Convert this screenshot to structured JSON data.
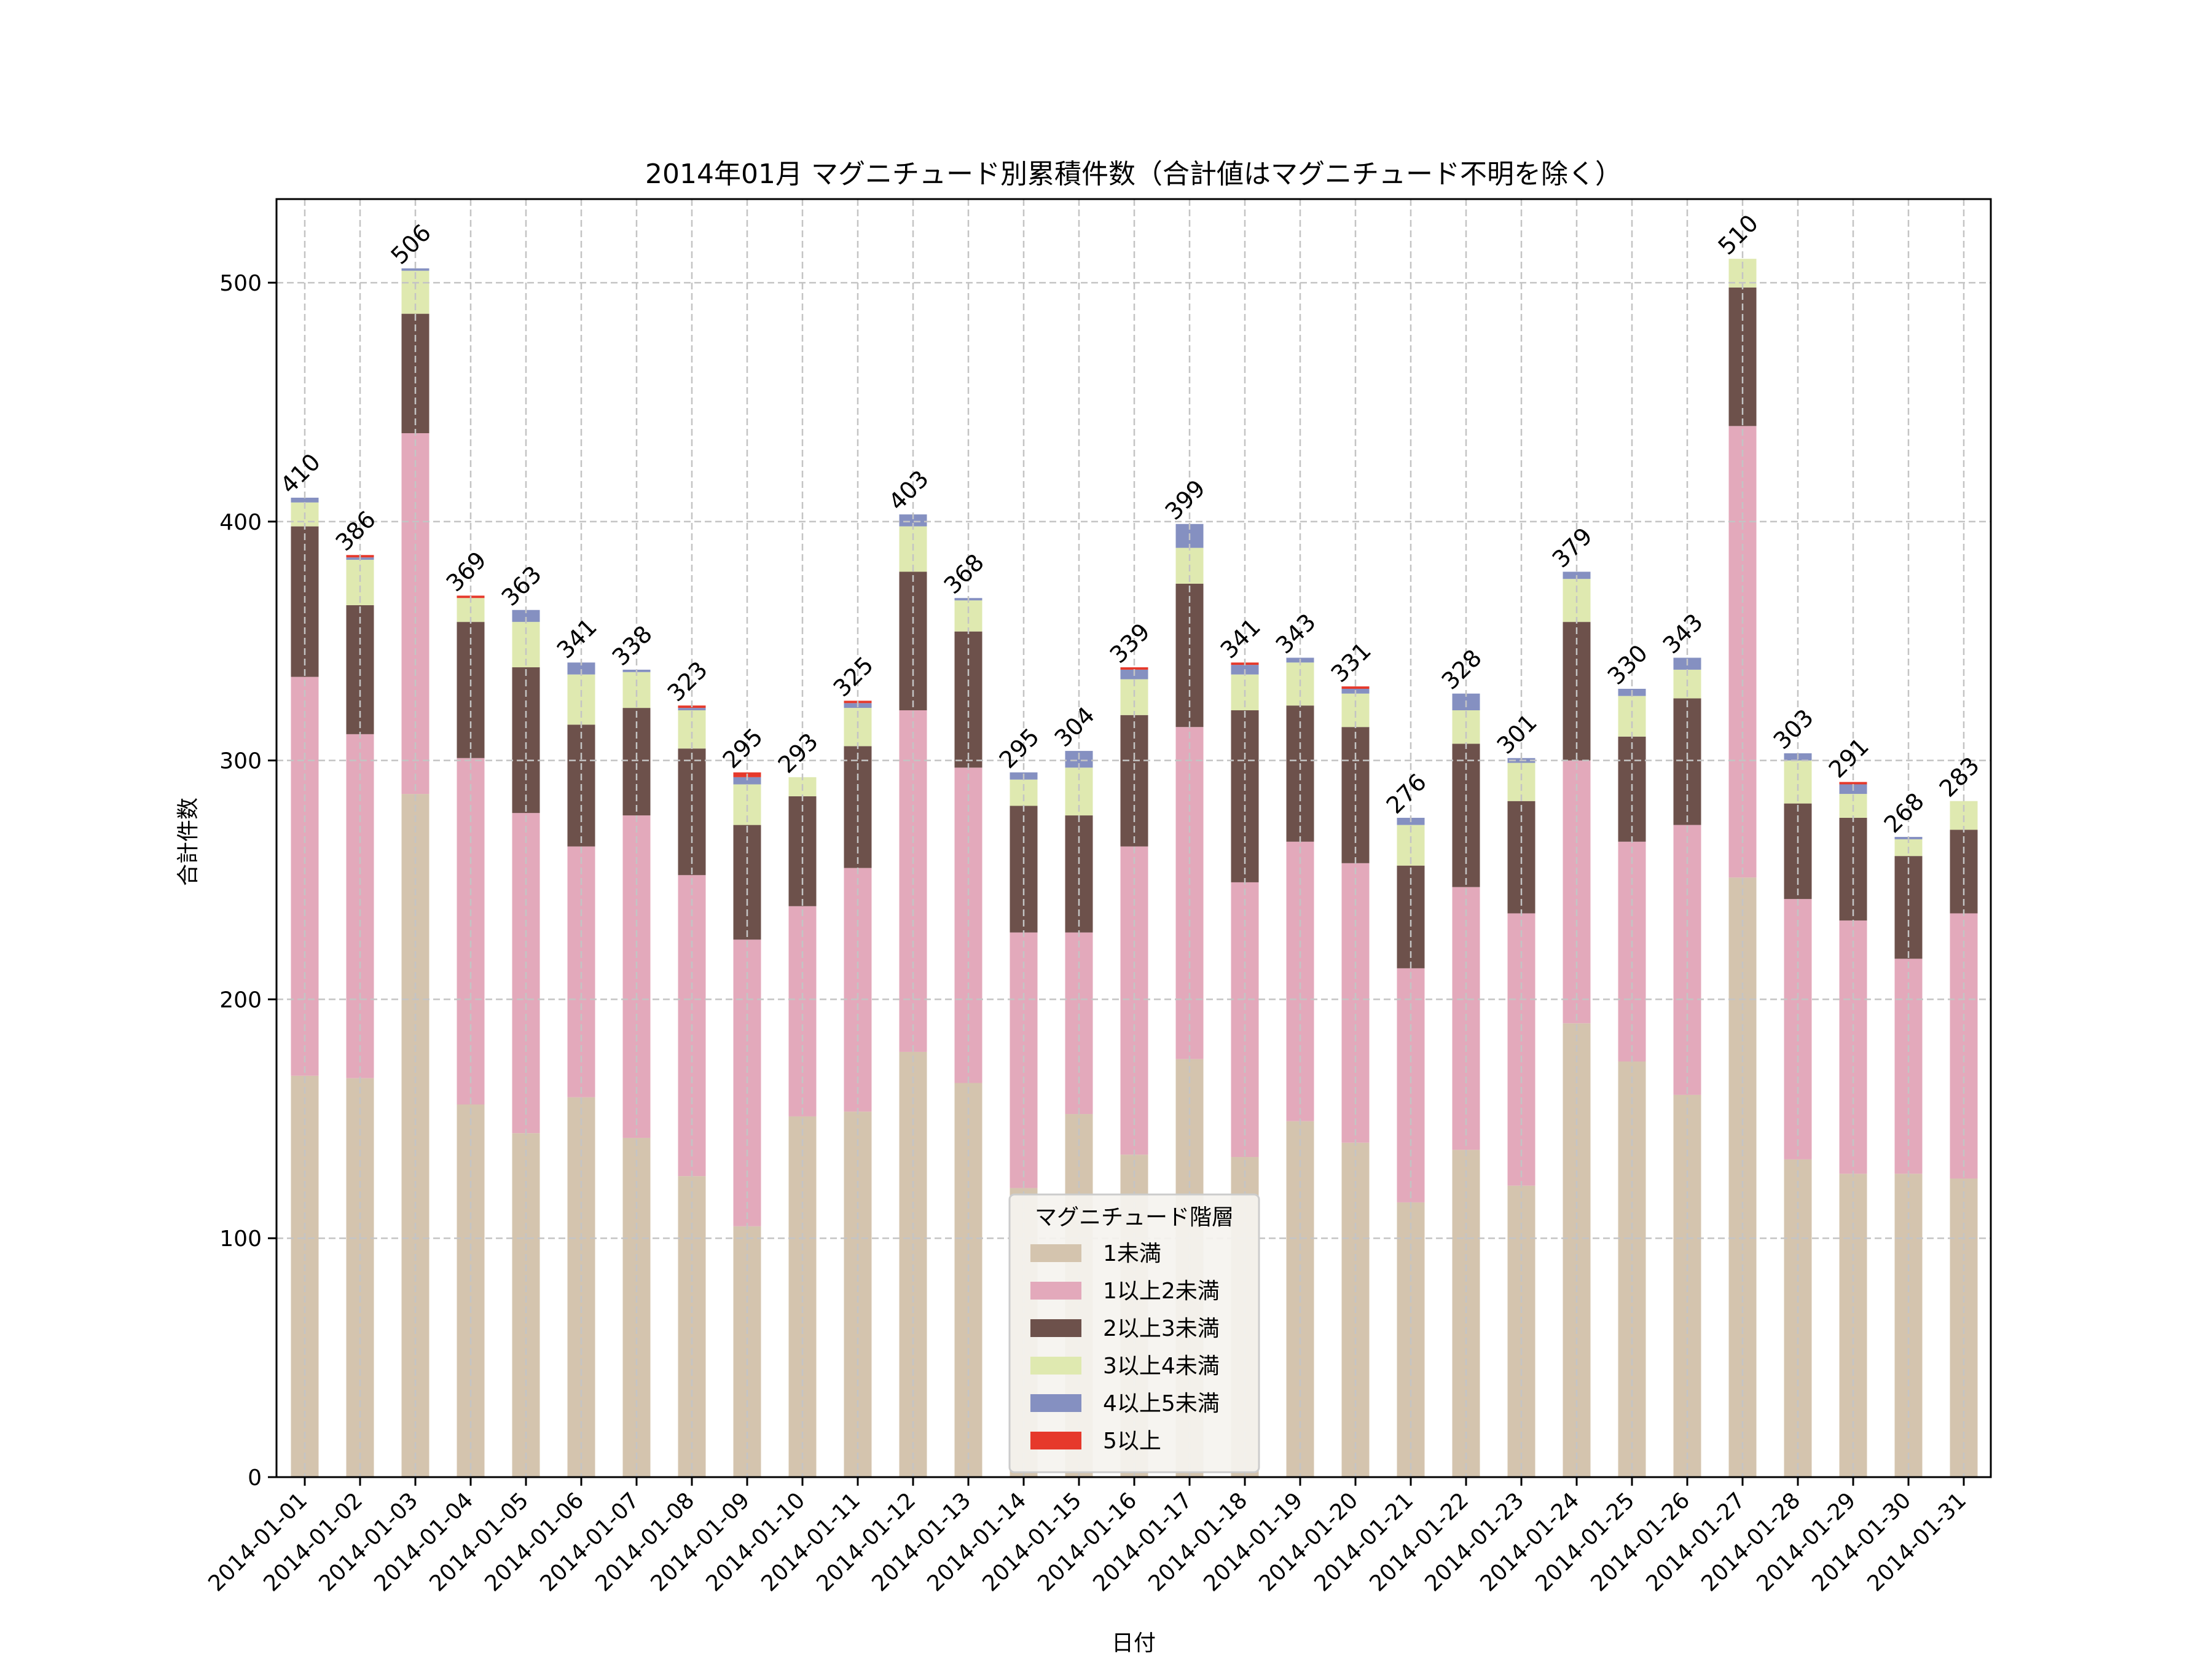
{
  "chart_data": {
    "type": "bar",
    "stacked": true,
    "title": "2014年01月 マグニチュード別累積件数（合計値はマグニチュード不明を除く）",
    "xlabel": "日付",
    "ylabel": "合計件数",
    "ylim": [
      0,
      535
    ],
    "yticks": [
      0,
      100,
      200,
      300,
      400,
      500
    ],
    "grid": true,
    "legend": {
      "title": "マグニチュード階層",
      "placement": "bottom-center"
    },
    "categories": [
      "2014-01-01",
      "2014-01-02",
      "2014-01-03",
      "2014-01-04",
      "2014-01-05",
      "2014-01-06",
      "2014-01-07",
      "2014-01-08",
      "2014-01-09",
      "2014-01-10",
      "2014-01-11",
      "2014-01-12",
      "2014-01-13",
      "2014-01-14",
      "2014-01-15",
      "2014-01-16",
      "2014-01-17",
      "2014-01-18",
      "2014-01-19",
      "2014-01-20",
      "2014-01-21",
      "2014-01-22",
      "2014-01-23",
      "2014-01-24",
      "2014-01-25",
      "2014-01-26",
      "2014-01-27",
      "2014-01-28",
      "2014-01-29",
      "2014-01-30",
      "2014-01-31"
    ],
    "series": [
      {
        "name": "1未満",
        "color": "#d4c4ae",
        "values": [
          168,
          167,
          286,
          156,
          144,
          159,
          142,
          126,
          105,
          151,
          153,
          178,
          165,
          121,
          152,
          135,
          175,
          134,
          149,
          140,
          115,
          137,
          122,
          190,
          174,
          160,
          251,
          133,
          127,
          127,
          125
        ]
      },
      {
        "name": "1以上2未満",
        "color": "#e3a9bb",
        "values": [
          167,
          144,
          151,
          145,
          134,
          105,
          135,
          126,
          120,
          88,
          102,
          143,
          132,
          107,
          76,
          129,
          139,
          115,
          117,
          117,
          98,
          110,
          114,
          110,
          92,
          113,
          189,
          109,
          106,
          90,
          111
        ]
      },
      {
        "name": "2以上3未満",
        "color": "#6d514b",
        "values": [
          63,
          54,
          50,
          57,
          61,
          51,
          45,
          53,
          48,
          46,
          51,
          58,
          57,
          53,
          49,
          55,
          60,
          72,
          57,
          57,
          43,
          60,
          47,
          58,
          44,
          53,
          58,
          40,
          43,
          43,
          35
        ]
      },
      {
        "name": "3以上4未満",
        "color": "#dfe9b0",
        "values": [
          10,
          19,
          18,
          10,
          19,
          21,
          15,
          16,
          17,
          8,
          16,
          19,
          13,
          11,
          20,
          15,
          15,
          15,
          18,
          14,
          17,
          14,
          16,
          18,
          17,
          12,
          12,
          18,
          10,
          7,
          12
        ]
      },
      {
        "name": "4以上5未満",
        "color": "#8590c1",
        "values": [
          2,
          1,
          1,
          0,
          5,
          5,
          1,
          1,
          3,
          0,
          2,
          5,
          1,
          3,
          7,
          4,
          10,
          4,
          2,
          2,
          3,
          7,
          2,
          3,
          3,
          5,
          0,
          3,
          4,
          1,
          0
        ]
      },
      {
        "name": "5以上",
        "color": "#e6392b",
        "values": [
          0,
          1,
          0,
          1,
          0,
          0,
          0,
          1,
          2,
          0,
          1,
          0,
          0,
          0,
          0,
          1,
          0,
          1,
          0,
          1,
          0,
          0,
          0,
          0,
          0,
          0,
          0,
          0,
          1,
          0,
          0
        ]
      }
    ],
    "totals": [
      410,
      386,
      506,
      369,
      363,
      341,
      338,
      323,
      295,
      293,
      325,
      403,
      368,
      295,
      304,
      339,
      399,
      341,
      343,
      331,
      276,
      328,
      301,
      379,
      330,
      343,
      510,
      303,
      291,
      268,
      283
    ]
  }
}
